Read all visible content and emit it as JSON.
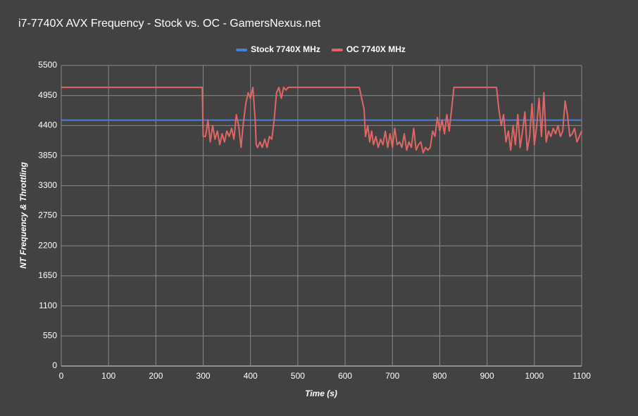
{
  "chart_data": {
    "type": "line",
    "title": "i7-7740X AVX Frequency - Stock vs. OC - GamersNexus.net",
    "xlabel": "Time (s)",
    "ylabel": "NT Frequency & Throttling",
    "xlim": [
      0,
      1100
    ],
    "xticks": [
      0,
      100,
      200,
      300,
      400,
      500,
      600,
      700,
      800,
      900,
      1000,
      1100
    ],
    "ylim": [
      0,
      5500
    ],
    "yticks": [
      0,
      550,
      1100,
      1650,
      2200,
      2750,
      3300,
      3850,
      4400,
      4950,
      5500
    ],
    "grid": true,
    "legend": "top",
    "series": [
      {
        "name": "Stock 7740X MHz",
        "color": "#4a7fd8",
        "x": [
          0,
          1100
        ],
        "values": [
          4500,
          4500
        ]
      },
      {
        "name": "OC 7740X MHz",
        "color": "#e06666",
        "x": [
          0,
          100,
          200,
          298,
          300,
          305,
          310,
          315,
          320,
          325,
          330,
          335,
          340,
          345,
          350,
          355,
          360,
          365,
          370,
          375,
          380,
          385,
          390,
          395,
          400,
          405,
          410,
          412,
          415,
          420,
          425,
          430,
          435,
          440,
          445,
          450,
          455,
          460,
          465,
          470,
          475,
          480,
          550,
          630,
          635,
          640,
          643,
          648,
          652,
          656,
          660,
          665,
          670,
          675,
          680,
          685,
          690,
          695,
          700,
          705,
          710,
          715,
          720,
          725,
          730,
          735,
          740,
          745,
          750,
          755,
          760,
          765,
          770,
          775,
          780,
          785,
          790,
          795,
          800,
          805,
          810,
          815,
          820,
          825,
          830,
          870,
          920,
          925,
          930,
          935,
          940,
          945,
          950,
          955,
          960,
          965,
          970,
          975,
          980,
          985,
          990,
          995,
          1000,
          1005,
          1010,
          1015,
          1020,
          1025,
          1030,
          1035,
          1040,
          1045,
          1050,
          1055,
          1060,
          1065,
          1070,
          1075,
          1080,
          1085,
          1090,
          1095,
          1100
        ],
        "values": [
          5100,
          5100,
          5100,
          5100,
          4200,
          4200,
          4500,
          4100,
          4400,
          4150,
          4300,
          4050,
          4250,
          4100,
          4300,
          4200,
          4350,
          4150,
          4600,
          4400,
          4000,
          4450,
          4800,
          5000,
          4900,
          5100,
          4500,
          4050,
          4000,
          4100,
          4000,
          4150,
          4000,
          4200,
          4150,
          4500,
          5000,
          5100,
          4900,
          5100,
          5050,
          5100,
          5100,
          5100,
          4900,
          4700,
          4200,
          4400,
          4100,
          4300,
          4050,
          4200,
          4000,
          4150,
          4050,
          4300,
          4000,
          4250,
          4000,
          4350,
          4050,
          4100,
          4000,
          4250,
          3950,
          4100,
          4000,
          4350,
          3950,
          4050,
          4100,
          3900,
          4000,
          3950,
          4000,
          4300,
          4200,
          4550,
          4300,
          4500,
          4250,
          4600,
          4300,
          4700,
          5100,
          5100,
          5100,
          4700,
          4400,
          4600,
          4100,
          4300,
          3950,
          4400,
          4050,
          4600,
          4000,
          4300,
          4650,
          3950,
          4200,
          4800,
          4050,
          4400,
          4900,
          4200,
          5000,
          4100,
          4300,
          4200,
          4350,
          4250,
          4400,
          4200,
          4300,
          4850,
          4600,
          4200,
          4250,
          4350,
          4100,
          4200,
          4300
        ]
      }
    ]
  }
}
